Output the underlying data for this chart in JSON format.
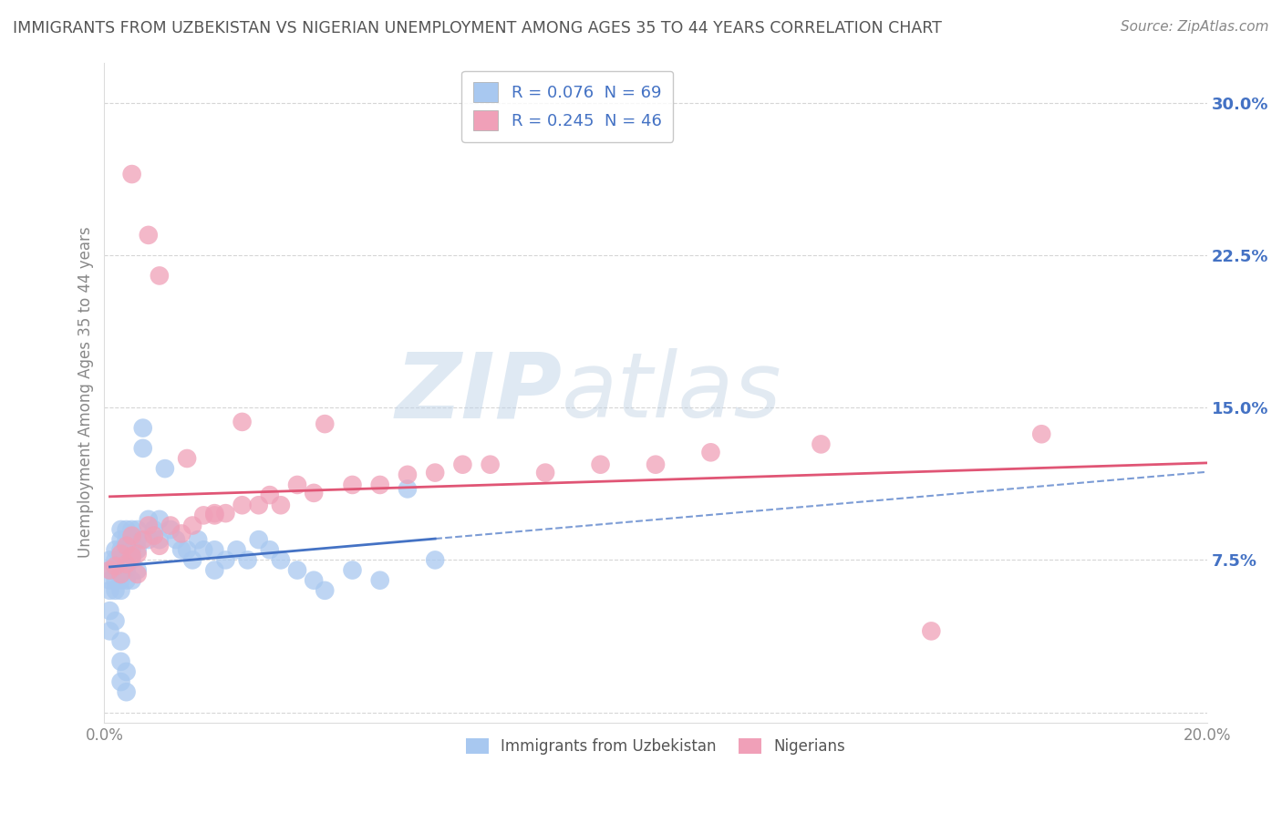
{
  "title": "IMMIGRANTS FROM UZBEKISTAN VS NIGERIAN UNEMPLOYMENT AMONG AGES 35 TO 44 YEARS CORRELATION CHART",
  "source": "Source: ZipAtlas.com",
  "ylabel": "Unemployment Among Ages 35 to 44 years",
  "xlim": [
    0.0,
    0.2
  ],
  "ylim": [
    -0.005,
    0.32
  ],
  "yticks": [
    0.0,
    0.075,
    0.15,
    0.225,
    0.3
  ],
  "ytick_labels": [
    "",
    "7.5%",
    "15.0%",
    "22.5%",
    "30.0%"
  ],
  "xticks": [
    0.0,
    0.05,
    0.1,
    0.15,
    0.2
  ],
  "xtick_labels": [
    "0.0%",
    "",
    "",
    "",
    "20.0%"
  ],
  "legend_label1": "R = 0.076  N = 69",
  "legend_label2": "R = 0.245  N = 46",
  "legend_label3": "Immigrants from Uzbekistan",
  "legend_label4": "Nigerians",
  "series1_color": "#a8c8f0",
  "series2_color": "#f0a0b8",
  "line1_color": "#4472c4",
  "line2_color": "#e05575",
  "watermark1": "ZIP",
  "watermark2": "atlas",
  "watermark_color1": "#c0d4e8",
  "watermark_color2": "#b8cce0",
  "background_color": "#ffffff",
  "grid_color": "#cccccc",
  "title_color": "#555555",
  "axis_color": "#888888",
  "ytick_color": "#4472c4",
  "series1_x": [
    0.001,
    0.001,
    0.001,
    0.001,
    0.002,
    0.002,
    0.002,
    0.002,
    0.002,
    0.003,
    0.003,
    0.003,
    0.003,
    0.003,
    0.003,
    0.003,
    0.004,
    0.004,
    0.004,
    0.004,
    0.004,
    0.004,
    0.005,
    0.005,
    0.005,
    0.005,
    0.005,
    0.006,
    0.006,
    0.006,
    0.006,
    0.007,
    0.007,
    0.008,
    0.008,
    0.009,
    0.01,
    0.01,
    0.011,
    0.012,
    0.013,
    0.014,
    0.015,
    0.016,
    0.017,
    0.018,
    0.02,
    0.02,
    0.022,
    0.024,
    0.026,
    0.028,
    0.03,
    0.032,
    0.035,
    0.038,
    0.04,
    0.045,
    0.05,
    0.055,
    0.06,
    0.001,
    0.001,
    0.002,
    0.003,
    0.003,
    0.003,
    0.004,
    0.004
  ],
  "series1_y": [
    0.075,
    0.07,
    0.065,
    0.06,
    0.08,
    0.075,
    0.07,
    0.065,
    0.06,
    0.09,
    0.085,
    0.08,
    0.075,
    0.07,
    0.065,
    0.06,
    0.09,
    0.085,
    0.08,
    0.075,
    0.07,
    0.065,
    0.09,
    0.085,
    0.08,
    0.075,
    0.065,
    0.09,
    0.085,
    0.08,
    0.07,
    0.14,
    0.13,
    0.095,
    0.085,
    0.09,
    0.095,
    0.085,
    0.12,
    0.09,
    0.085,
    0.08,
    0.08,
    0.075,
    0.085,
    0.08,
    0.08,
    0.07,
    0.075,
    0.08,
    0.075,
    0.085,
    0.08,
    0.075,
    0.07,
    0.065,
    0.06,
    0.07,
    0.065,
    0.11,
    0.075,
    0.05,
    0.04,
    0.045,
    0.035,
    0.025,
    0.015,
    0.02,
    0.01
  ],
  "series2_x": [
    0.001,
    0.002,
    0.003,
    0.003,
    0.004,
    0.004,
    0.005,
    0.005,
    0.006,
    0.006,
    0.007,
    0.008,
    0.009,
    0.01,
    0.012,
    0.014,
    0.016,
    0.018,
    0.02,
    0.022,
    0.025,
    0.028,
    0.03,
    0.032,
    0.035,
    0.038,
    0.04,
    0.045,
    0.05,
    0.055,
    0.06,
    0.065,
    0.07,
    0.08,
    0.09,
    0.1,
    0.11,
    0.13,
    0.15,
    0.17,
    0.005,
    0.008,
    0.01,
    0.015,
    0.02,
    0.025
  ],
  "series2_y": [
    0.07,
    0.072,
    0.068,
    0.078,
    0.082,
    0.073,
    0.087,
    0.077,
    0.078,
    0.068,
    0.085,
    0.092,
    0.087,
    0.082,
    0.092,
    0.088,
    0.092,
    0.097,
    0.097,
    0.098,
    0.102,
    0.102,
    0.107,
    0.102,
    0.112,
    0.108,
    0.142,
    0.112,
    0.112,
    0.117,
    0.118,
    0.122,
    0.122,
    0.118,
    0.122,
    0.122,
    0.128,
    0.132,
    0.04,
    0.137,
    0.265,
    0.235,
    0.215,
    0.125,
    0.098,
    0.143
  ]
}
